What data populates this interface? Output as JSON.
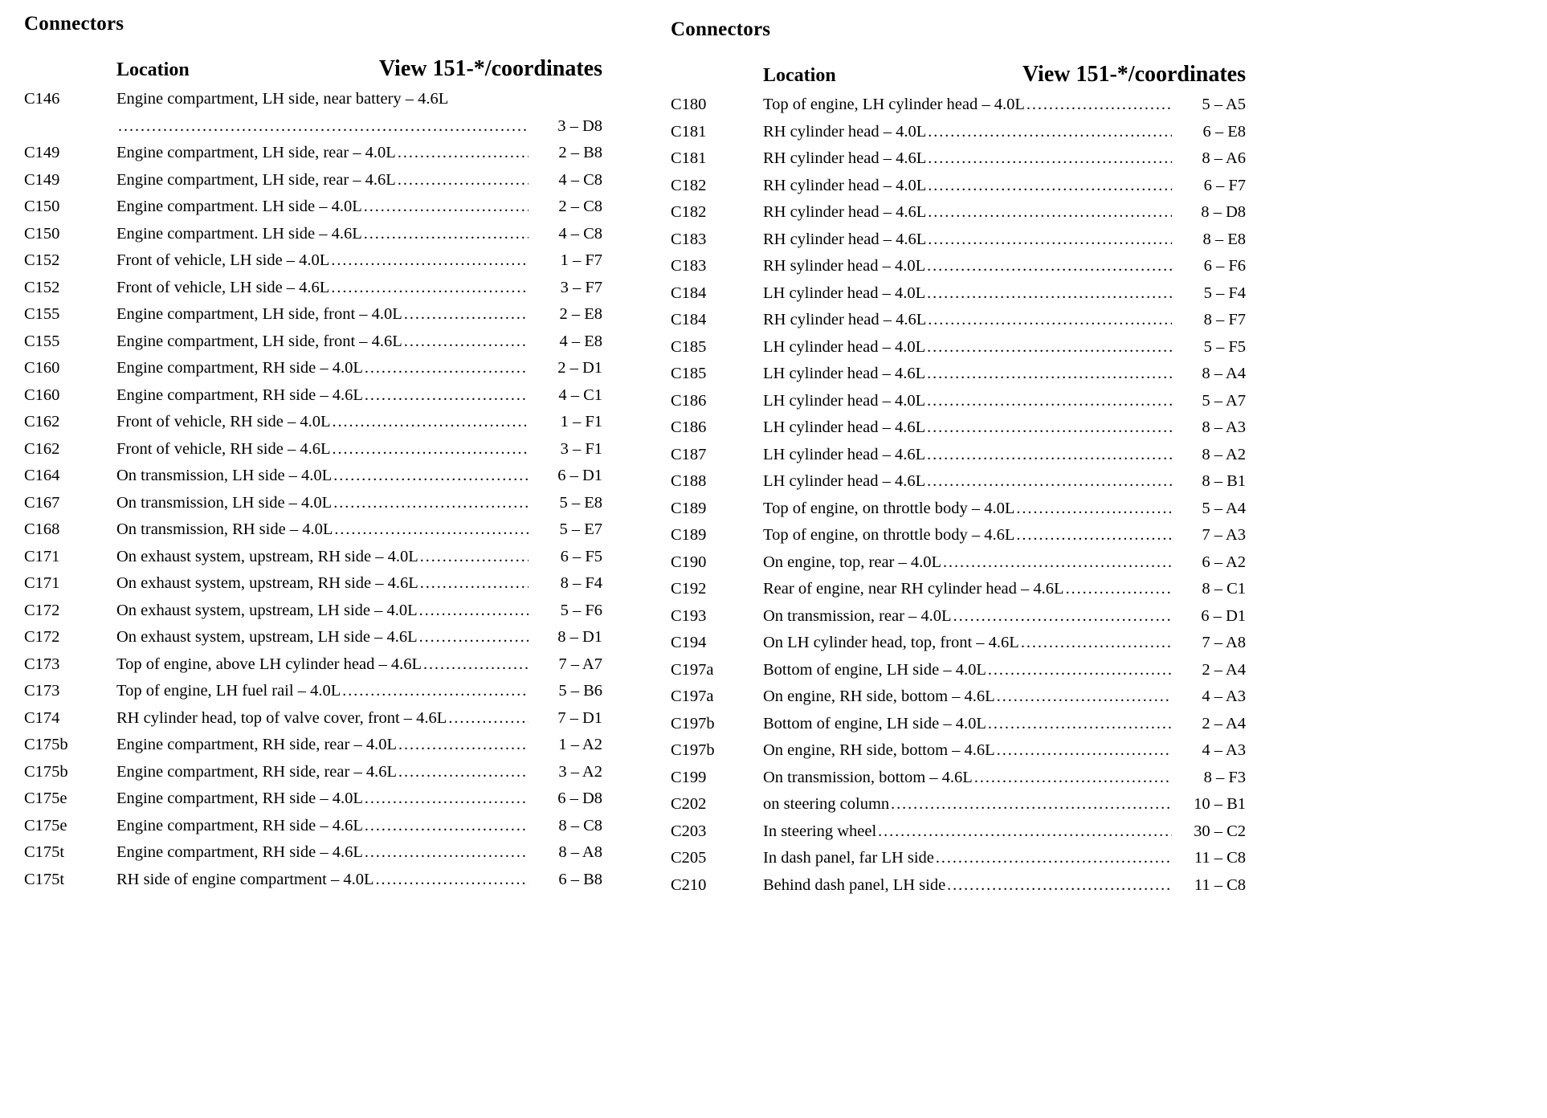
{
  "columns": [
    {
      "title": "Connectors",
      "header": {
        "location": "Location",
        "coordinates": "View 151-*/coordinates"
      },
      "rows": [
        {
          "code": "C146",
          "location": "Engine compartment, LH side, near battery – 4.6L",
          "value": "3 – D8",
          "wrap": true
        },
        {
          "code": "C149",
          "location": "Engine compartment, LH side, rear – 4.0L",
          "value": "2 – B8"
        },
        {
          "code": "C149",
          "location": "Engine compartment, LH side, rear – 4.6L",
          "value": "4 – C8"
        },
        {
          "code": "C150",
          "location": "Engine compartment. LH side – 4.0L",
          "value": "2 – C8"
        },
        {
          "code": "C150",
          "location": "Engine compartment. LH side – 4.6L",
          "value": "4 – C8"
        },
        {
          "code": "C152",
          "location": "Front of vehicle, LH side – 4.0L",
          "value": "1 – F7"
        },
        {
          "code": "C152",
          "location": "Front of vehicle, LH side – 4.6L",
          "value": "3 – F7"
        },
        {
          "code": "C155",
          "location": "Engine compartment, LH side, front – 4.0L",
          "value": "2 – E8"
        },
        {
          "code": "C155",
          "location": "Engine compartment, LH side, front – 4.6L",
          "value": "4 – E8"
        },
        {
          "code": "C160",
          "location": "Engine compartment, RH side – 4.0L",
          "value": "2 – D1"
        },
        {
          "code": "C160",
          "location": "Engine compartment, RH side – 4.6L",
          "value": "4 – C1"
        },
        {
          "code": "C162",
          "location": "Front of vehicle, RH side – 4.0L",
          "value": "1 – F1"
        },
        {
          "code": "C162",
          "location": "Front of vehicle, RH side – 4.6L",
          "value": "3 – F1"
        },
        {
          "code": "C164",
          "location": "On transmission, LH side – 4.0L",
          "value": "6 – D1"
        },
        {
          "code": "C167",
          "location": "On transmission, LH side – 4.0L",
          "value": "5 – E8"
        },
        {
          "code": "C168",
          "location": "On transmission, RH side – 4.0L",
          "value": "5 – E7"
        },
        {
          "code": "C171",
          "location": "On exhaust system, upstream, RH side – 4.0L",
          "value": "6 – F5"
        },
        {
          "code": "C171",
          "location": "On exhaust system, upstream, RH side – 4.6L",
          "value": "8 – F4"
        },
        {
          "code": "C172",
          "location": "On exhaust system, upstream, LH side – 4.0L",
          "value": "5 – F6"
        },
        {
          "code": "C172",
          "location": "On exhaust system, upstream, LH side – 4.6L",
          "value": "8 – D1"
        },
        {
          "code": "C173",
          "location": "Top of engine, above LH cylinder head – 4.6L",
          "value": "7 – A7"
        },
        {
          "code": "C173",
          "location": "Top of engine, LH fuel rail – 4.0L",
          "value": "5 – B6"
        },
        {
          "code": "C174",
          "location": "RH cylinder head, top of valve cover, front – 4.6L",
          "value": "7 – D1"
        },
        {
          "code": "C175b",
          "location": "Engine compartment, RH side, rear – 4.0L",
          "value": "1 – A2"
        },
        {
          "code": "C175b",
          "location": "Engine compartment, RH side, rear – 4.6L",
          "value": "3 – A2"
        },
        {
          "code": "C175e",
          "location": "Engine compartment, RH side – 4.0L",
          "value": "6 – D8"
        },
        {
          "code": "C175e",
          "location": "Engine compartment, RH side – 4.6L",
          "value": "8 – C8"
        },
        {
          "code": "C175t",
          "location": "Engine compartment, RH side – 4.6L",
          "value": "8 – A8"
        },
        {
          "code": "C175t",
          "location": "RH side of engine compartment – 4.0L",
          "value": "6 – B8"
        }
      ]
    },
    {
      "title": "Connectors",
      "header": {
        "location": "Location",
        "coordinates": "View 151-*/coordinates"
      },
      "rows": [
        {
          "code": "C180",
          "location": "Top of engine, LH cylinder head – 4.0L",
          "value": "5 – A5"
        },
        {
          "code": "C181",
          "location": "RH cylinder head – 4.0L",
          "value": "6 – E8"
        },
        {
          "code": "C181",
          "location": "RH cylinder head – 4.6L",
          "value": "8 – A6"
        },
        {
          "code": "C182",
          "location": "RH cylinder head – 4.0L",
          "value": "6 – F7"
        },
        {
          "code": "C182",
          "location": "RH cylinder head – 4.6L",
          "value": "8 – D8"
        },
        {
          "code": "C183",
          "location": "RH cylinder head – 4.6L",
          "value": "8 – E8"
        },
        {
          "code": "C183",
          "location": "RH sylinder head – 4.0L",
          "value": "6 – F6"
        },
        {
          "code": "C184",
          "location": "LH cylinder head – 4.0L",
          "value": "5 – F4"
        },
        {
          "code": "C184",
          "location": "RH cylinder head – 4.6L",
          "value": "8 – F7"
        },
        {
          "code": "C185",
          "location": "LH cylinder head – 4.0L",
          "value": "5 – F5"
        },
        {
          "code": "C185",
          "location": "LH cylinder head – 4.6L",
          "value": "8 – A4"
        },
        {
          "code": "C186",
          "location": "LH cylinder head – 4.0L",
          "value": "5 – A7"
        },
        {
          "code": "C186",
          "location": "LH cylinder head – 4.6L",
          "value": "8 – A3"
        },
        {
          "code": "C187",
          "location": "LH cylinder head – 4.6L",
          "value": "8 – A2"
        },
        {
          "code": "C188",
          "location": "LH cylinder head – 4.6L",
          "value": "8 – B1"
        },
        {
          "code": "C189",
          "location": "Top of engine, on throttle body – 4.0L",
          "value": "5 – A4"
        },
        {
          "code": "C189",
          "location": "Top of engine, on throttle body – 4.6L",
          "value": "7 – A3"
        },
        {
          "code": "C190",
          "location": "On engine, top, rear – 4.0L",
          "value": "6 – A2"
        },
        {
          "code": "C192",
          "location": "Rear of engine, near RH cylinder head – 4.6L",
          "value": "8 – C1"
        },
        {
          "code": "C193",
          "location": "On transmission, rear – 4.0L",
          "value": "6 – D1"
        },
        {
          "code": "C194",
          "location": "On LH cylinder head, top, front – 4.6L",
          "value": "7 – A8"
        },
        {
          "code": "C197a",
          "location": "Bottom of engine, LH side – 4.0L",
          "value": "2 – A4"
        },
        {
          "code": "C197a",
          "location": "On engine, RH side, bottom – 4.6L",
          "value": "4 – A3"
        },
        {
          "code": "C197b",
          "location": "Bottom of engine, LH side – 4.0L",
          "value": "2 – A4"
        },
        {
          "code": "C197b",
          "location": "On engine, RH side, bottom – 4.6L",
          "value": "4 – A3"
        },
        {
          "code": "C199",
          "location": "On transmission, bottom – 4.6L",
          "value": "8 – F3"
        },
        {
          "code": "C202",
          "location": "on steering column",
          "value": "10 – B1"
        },
        {
          "code": "C203",
          "location": "In steering wheel",
          "value": "30 – C2"
        },
        {
          "code": "C205",
          "location": "In dash panel, far LH side",
          "value": "11 – C8"
        },
        {
          "code": "C210",
          "location": "Behind dash panel, LH side",
          "value": "11 – C8"
        }
      ]
    }
  ]
}
